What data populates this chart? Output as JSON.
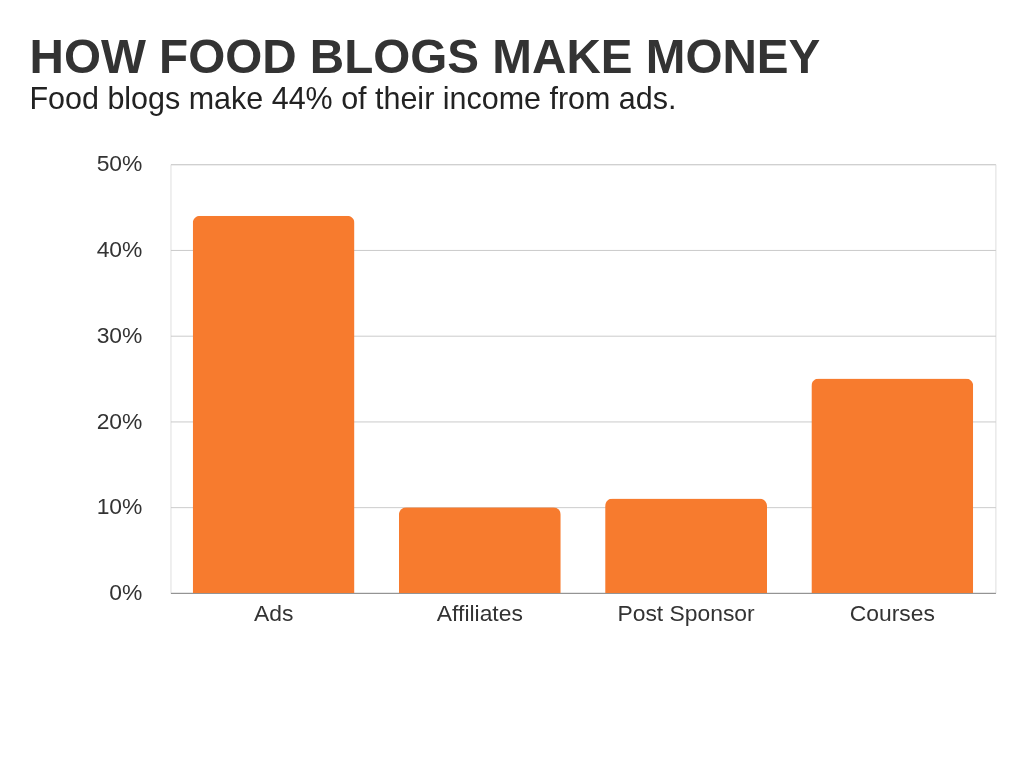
{
  "chart_data": {
    "type": "bar",
    "title": "HOW FOOD BLOGS MAKE MONEY",
    "subtitle": "Food blogs make 44% of their income from ads.",
    "categories": [
      "Ads",
      "Affiliates",
      "Post Sponsor",
      "Courses"
    ],
    "values": [
      44,
      10,
      11,
      25
    ],
    "color": "#f77b2e",
    "ylim": [
      0,
      50
    ],
    "yticks": [
      {
        "value": 0,
        "label": "0%"
      },
      {
        "value": 10,
        "label": "10%"
      },
      {
        "value": 20,
        "label": "20%"
      },
      {
        "value": 30,
        "label": "30%"
      },
      {
        "value": 40,
        "label": "40%"
      },
      {
        "value": 50,
        "label": "50%"
      }
    ],
    "grid": "y"
  }
}
